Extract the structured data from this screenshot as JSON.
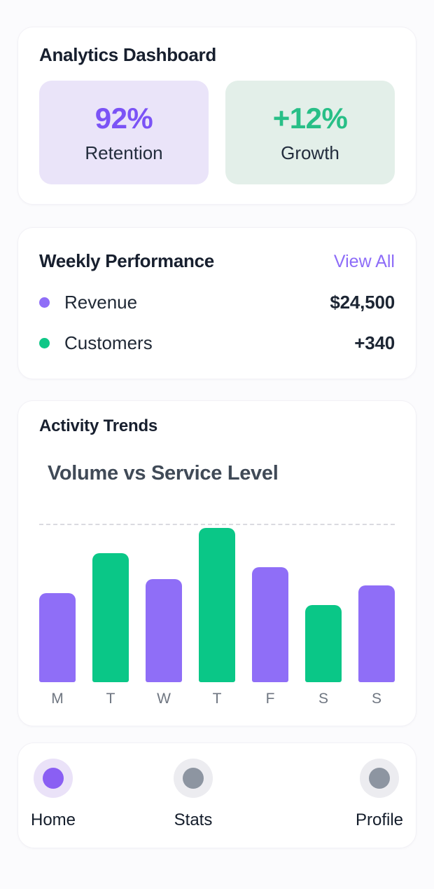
{
  "colors": {
    "accent_purple": "#8f6ef7",
    "accent_green": "#0ac787",
    "purple_text": "#7b53f6",
    "green_text": "#28bf87",
    "purple_tile_bg": "#eae4f9",
    "green_tile_bg": "#e3efe9",
    "link_purple": "#8d6cf8",
    "card_bg": "#ffffff",
    "page_bg": "#fbfbfd"
  },
  "header_card": {
    "title": "Analytics Dashboard",
    "stats": [
      {
        "value": "92%",
        "label": "Retention"
      },
      {
        "value": "+12%",
        "label": "Growth"
      }
    ]
  },
  "performance_card": {
    "title": "Weekly Performance",
    "action_label": "View All",
    "rows": [
      {
        "label": "Revenue",
        "value": "$24,500",
        "dot_color": "#8f6ef7"
      },
      {
        "label": "Customers",
        "value": "+340",
        "dot_color": "#0fc787"
      }
    ]
  },
  "activity_card": {
    "title": "Activity Trends"
  },
  "chart_data": {
    "type": "bar",
    "title": "Volume vs Service Level",
    "categories": [
      "M",
      "T",
      "W",
      "T",
      "F",
      "S",
      "S"
    ],
    "values": [
      45,
      65,
      52,
      78,
      58,
      39,
      49
    ],
    "bar_colors": [
      "purple",
      "green",
      "purple",
      "green",
      "purple",
      "green",
      "purple"
    ],
    "xlabel": "",
    "ylabel": "",
    "ylim": [
      0,
      80
    ],
    "grid": "single dashed gridline at top of plot",
    "legend_position": "none"
  },
  "nav": {
    "items": [
      {
        "label": "Home",
        "active": true
      },
      {
        "label": "Stats",
        "active": false
      },
      {
        "label": "Profile",
        "active": false
      }
    ]
  }
}
